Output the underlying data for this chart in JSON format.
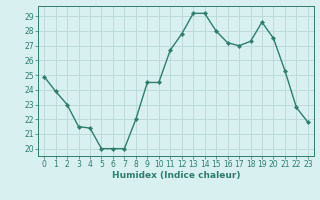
{
  "xlabel": "Humidex (Indice chaleur)",
  "x": [
    0,
    1,
    2,
    3,
    4,
    5,
    6,
    7,
    8,
    9,
    10,
    11,
    12,
    13,
    14,
    15,
    16,
    17,
    18,
    19,
    20,
    21,
    22,
    23
  ],
  "y": [
    24.9,
    23.9,
    23.0,
    21.5,
    21.4,
    20.0,
    20.0,
    20.0,
    22.0,
    24.5,
    24.5,
    26.7,
    27.8,
    29.2,
    29.2,
    28.0,
    27.2,
    27.0,
    27.3,
    28.6,
    27.5,
    25.3,
    22.8,
    21.8
  ],
  "line_color": "#2e7d6e",
  "marker": "D",
  "marker_size": 2.2,
  "line_width": 1.0,
  "bg_color": "#d8f0f0",
  "grid_color": "#b8d8d8",
  "tick_color": "#2e7d6e",
  "label_color": "#2e7d6e",
  "ylim": [
    19.5,
    29.7
  ],
  "yticks": [
    20,
    21,
    22,
    23,
    24,
    25,
    26,
    27,
    28,
    29
  ],
  "xlim": [
    -0.5,
    23.5
  ],
  "xticks": [
    0,
    1,
    2,
    3,
    4,
    5,
    6,
    7,
    8,
    9,
    10,
    11,
    12,
    13,
    14,
    15,
    16,
    17,
    18,
    19,
    20,
    21,
    22,
    23
  ],
  "tick_fontsize": 5.5,
  "xlabel_fontsize": 6.5
}
